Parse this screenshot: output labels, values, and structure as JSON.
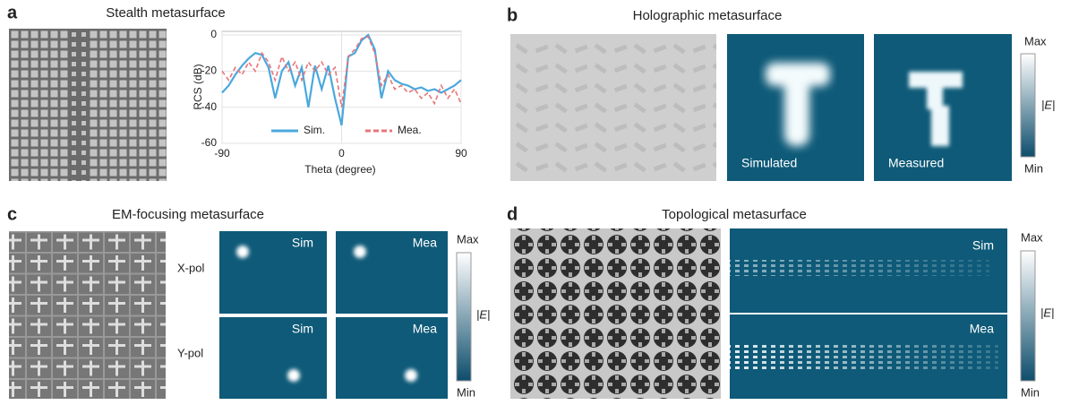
{
  "panels": {
    "a": {
      "label": "a",
      "title": "Stealth metasurface"
    },
    "b": {
      "label": "b",
      "title": "Holographic metasurface",
      "images": [
        "Simulated",
        "Measured"
      ],
      "colorbar": {
        "max": "Max",
        "min": "Min",
        "quantity": "|E|"
      }
    },
    "c": {
      "label": "c",
      "title": "EM-focusing metasurface",
      "rows": [
        "X-pol",
        "Y-pol"
      ],
      "columns": [
        "Sim",
        "Mea"
      ],
      "colorbar": {
        "max": "Max",
        "min": "Min",
        "quantity": "|E|"
      }
    },
    "d": {
      "label": "d",
      "title": "Topological metasurface",
      "rows": [
        "Sim",
        "Mea"
      ],
      "colorbar": {
        "max": "Max",
        "min": "Min",
        "quantity": "|E|"
      }
    }
  },
  "chart_data": {
    "type": "line",
    "xlabel": "Theta (degree)",
    "ylabel": "RCS (dB)",
    "x": [
      -90,
      -85,
      -80,
      -75,
      -70,
      -65,
      -60,
      -55,
      -50,
      -45,
      -40,
      -35,
      -30,
      -25,
      -20,
      -15,
      -10,
      -5,
      0,
      5,
      10,
      15,
      20,
      25,
      30,
      35,
      40,
      45,
      50,
      55,
      60,
      65,
      70,
      75,
      80,
      85,
      90
    ],
    "series": [
      {
        "name": "Sim.",
        "color": "#4aa8de",
        "line_style": "solid",
        "values": [
          -32,
          -28,
          -22,
          -17,
          -13,
          -10,
          -11,
          -18,
          -35,
          -20,
          -15,
          -28,
          -18,
          -40,
          -17,
          -30,
          -17,
          -35,
          -50,
          -12,
          -10,
          -3,
          0,
          -8,
          -35,
          -20,
          -25,
          -27,
          -28,
          -30,
          -29,
          -31,
          -30,
          -32,
          -30,
          -28,
          -25
        ]
      },
      {
        "name": "Mea.",
        "color": "#e8757a",
        "line_style": "dashed",
        "values": [
          -20,
          -25,
          -18,
          -22,
          -15,
          -20,
          -10,
          -15,
          -25,
          -12,
          -20,
          -15,
          -25,
          -15,
          -20,
          -15,
          -22,
          -18,
          -40,
          -12,
          -8,
          -2,
          -1,
          -10,
          -28,
          -22,
          -30,
          -28,
          -32,
          -30,
          -35,
          -32,
          -38,
          -28,
          -35,
          -30,
          -38
        ]
      }
    ],
    "xlim": [
      -90,
      90
    ],
    "ylim": [
      -60,
      2
    ],
    "xticks": [
      -90,
      0,
      90
    ],
    "yticks": [
      0,
      -20,
      -40,
      -60
    ],
    "grid": true,
    "legend": "bottom"
  }
}
